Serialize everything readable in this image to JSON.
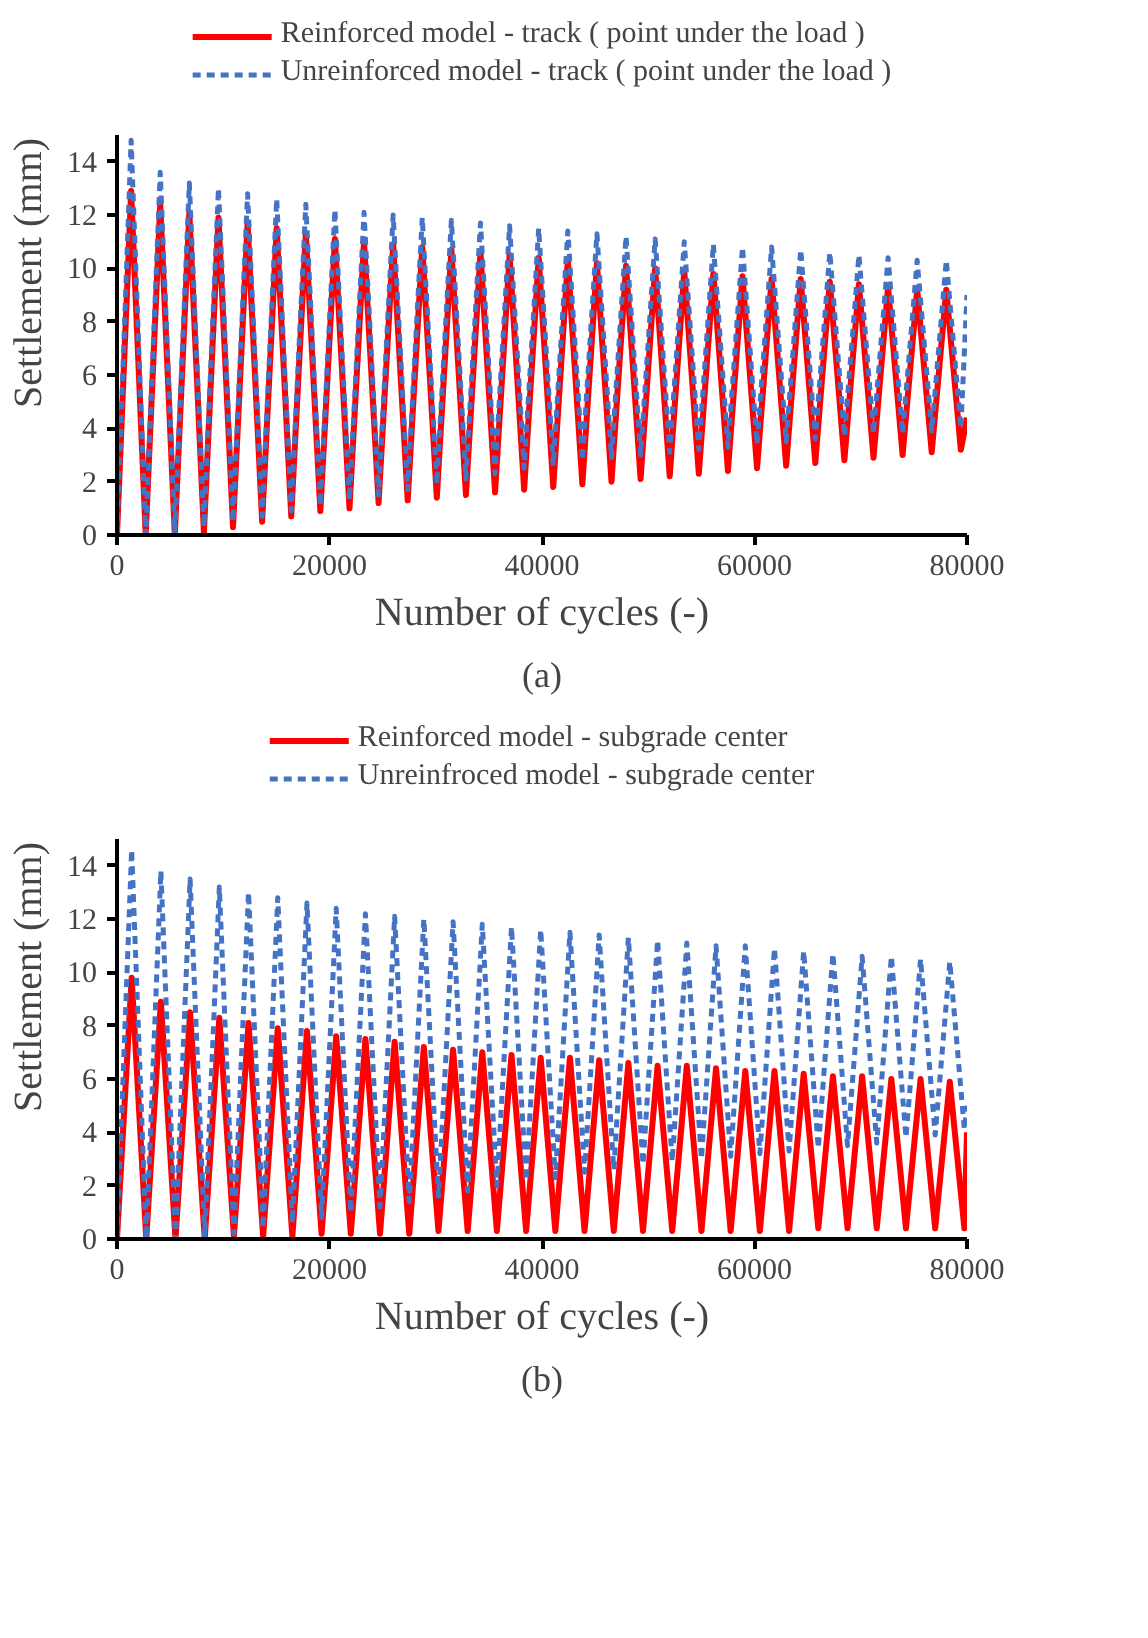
{
  "chart_data": [
    {
      "type": "line",
      "xlabel": "Number of cycles (-)",
      "ylabel": "Settlement (mm)",
      "annotations": [
        "(a)"
      ],
      "legend": "top",
      "grid": false,
      "marker": "none",
      "xlim": [
        0,
        80000
      ],
      "xticks": [
        0,
        20000,
        40000,
        60000,
        80000
      ],
      "ylim": [
        0,
        15
      ],
      "yticks": [
        0,
        2,
        4,
        6,
        8,
        10,
        12,
        14
      ],
      "x": [
        0,
        1330,
        2700,
        4070,
        5440,
        6810,
        8180,
        9550,
        10920,
        12290,
        13660,
        15030,
        16400,
        17770,
        19140,
        20510,
        21880,
        23250,
        24620,
        25990,
        27360,
        28730,
        30100,
        31470,
        32840,
        34210,
        35580,
        36950,
        38320,
        39690,
        41060,
        42430,
        43800,
        45170,
        46540,
        47910,
        49280,
        50650,
        52020,
        53390,
        54760,
        56130,
        57500,
        58870,
        60240,
        61610,
        62980,
        64350,
        65720,
        67090,
        68460,
        69830,
        71200,
        72570,
        73940,
        75310,
        76680,
        78050,
        79420,
        80000
      ],
      "series": [
        {
          "name": "Reinforced model - track ( point under the load )",
          "color": "#ff0000",
          "line_style": "solid",
          "values": [
            0,
            12.9,
            0,
            12.4,
            0,
            12.1,
            0.1,
            11.9,
            0.3,
            11.7,
            0.5,
            11.5,
            0.7,
            11.3,
            0.9,
            11.1,
            1.0,
            11.0,
            1.2,
            10.9,
            1.3,
            10.8,
            1.4,
            10.7,
            1.5,
            10.6,
            1.6,
            10.5,
            1.7,
            10.4,
            1.8,
            10.3,
            1.9,
            10.2,
            2.0,
            10.1,
            2.1,
            10.0,
            2.2,
            9.9,
            2.3,
            9.8,
            2.4,
            9.7,
            2.5,
            9.6,
            2.6,
            9.6,
            2.7,
            9.5,
            2.8,
            9.4,
            2.9,
            9.3,
            3.0,
            9.2,
            3.1,
            9.2,
            3.2,
            4.4
          ]
        },
        {
          "name": "Unreinforced model - track ( point under the load )",
          "color": "#4472c4",
          "line_style": "dashed",
          "values": [
            0,
            14.8,
            0,
            13.6,
            0.1,
            13.2,
            0.3,
            13.0,
            0.5,
            12.8,
            0.7,
            12.6,
            0.9,
            12.4,
            1.1,
            12.2,
            1.3,
            12.1,
            1.5,
            12.0,
            1.7,
            11.9,
            1.9,
            11.8,
            2.1,
            11.7,
            2.3,
            11.6,
            2.5,
            11.5,
            2.6,
            11.4,
            2.8,
            11.3,
            2.9,
            11.2,
            3.0,
            11.1,
            3.1,
            11.0,
            3.2,
            10.9,
            3.3,
            10.8,
            3.4,
            10.8,
            3.5,
            10.7,
            3.6,
            10.6,
            3.7,
            10.5,
            3.8,
            10.4,
            3.8,
            10.3,
            3.9,
            10.3,
            4.0,
            9.0
          ]
        }
      ]
    },
    {
      "type": "line",
      "xlabel": "Number of cycles (-)",
      "ylabel": "Settlement (mm)",
      "annotations": [
        "(b)"
      ],
      "legend": "top",
      "grid": false,
      "marker": "none",
      "xlim": [
        0,
        80000
      ],
      "xticks": [
        0,
        20000,
        40000,
        60000,
        80000
      ],
      "ylim": [
        0,
        15
      ],
      "yticks": [
        0,
        2,
        4,
        6,
        8,
        10,
        12,
        14
      ],
      "x": [
        0,
        1380,
        2755,
        4130,
        5505,
        6880,
        8255,
        9630,
        11005,
        12380,
        13755,
        15130,
        16505,
        17880,
        19255,
        20630,
        22005,
        23380,
        24755,
        26130,
        27505,
        28880,
        30255,
        31630,
        33005,
        34380,
        35755,
        37130,
        38505,
        39880,
        41255,
        42630,
        44005,
        45380,
        46755,
        48130,
        49505,
        50880,
        52255,
        53630,
        55005,
        56380,
        57755,
        59130,
        60505,
        61880,
        63255,
        64630,
        66005,
        67380,
        68755,
        70130,
        71505,
        72880,
        74255,
        75630,
        77005,
        78380,
        79755,
        80000
      ],
      "series": [
        {
          "name": "Reinforced model - subgrade center",
          "color": "#ff0000",
          "line_style": "solid",
          "values": [
            0,
            9.8,
            0,
            8.9,
            0,
            8.5,
            0,
            8.3,
            0.1,
            8.1,
            0.1,
            7.9,
            0.1,
            7.8,
            0.2,
            7.6,
            0.2,
            7.5,
            0.2,
            7.4,
            0.2,
            7.2,
            0.3,
            7.1,
            0.3,
            7.0,
            0.3,
            6.9,
            0.3,
            6.8,
            0.3,
            6.8,
            0.3,
            6.7,
            0.3,
            6.6,
            0.3,
            6.5,
            0.3,
            6.5,
            0.3,
            6.4,
            0.3,
            6.3,
            0.3,
            6.3,
            0.3,
            6.2,
            0.4,
            6.1,
            0.4,
            6.1,
            0.4,
            6.0,
            0.4,
            6.0,
            0.4,
            5.9,
            0.4,
            4.0
          ]
        },
        {
          "name": "Unreinfroced model - subgrade center",
          "color": "#4472c4",
          "line_style": "dashed",
          "values": [
            0,
            14.6,
            0,
            13.8,
            0,
            13.5,
            0.1,
            13.2,
            0.2,
            13.0,
            0.4,
            12.8,
            0.6,
            12.6,
            0.8,
            12.4,
            1.0,
            12.2,
            1.2,
            12.1,
            1.4,
            12.0,
            1.6,
            11.9,
            1.8,
            11.8,
            2.0,
            11.7,
            2.2,
            11.6,
            2.3,
            11.5,
            2.5,
            11.4,
            2.6,
            11.3,
            2.8,
            11.2,
            2.9,
            11.1,
            3.0,
            11.0,
            3.1,
            11.0,
            3.2,
            10.9,
            3.3,
            10.8,
            3.4,
            10.7,
            3.5,
            10.6,
            3.6,
            10.6,
            3.8,
            10.5,
            3.9,
            10.4,
            4.1,
            5.0
          ]
        }
      ]
    }
  ]
}
